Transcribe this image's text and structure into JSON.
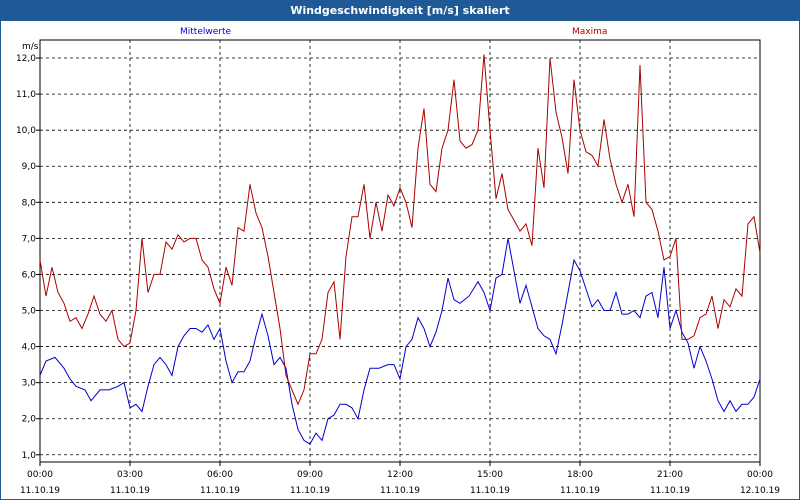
{
  "window": {
    "title": "Windgeschwindigkeit [m/s] skaliert"
  },
  "chart_data": {
    "type": "line",
    "ylabel": "m/s",
    "ylim": [
      0.8,
      12.5
    ],
    "yticks": [
      "1,0",
      "2,0",
      "3,0",
      "4,0",
      "5,0",
      "6,0",
      "7,0",
      "8,0",
      "9,0",
      "10,0",
      "11,0",
      "12,0"
    ],
    "xticks": [
      {
        "time": "00:00",
        "date": "11.10.19"
      },
      {
        "time": "03:00",
        "date": "11.10.19"
      },
      {
        "time": "06:00",
        "date": "11.10.19"
      },
      {
        "time": "09:00",
        "date": "11.10.19"
      },
      {
        "time": "12:00",
        "date": "11.10.19"
      },
      {
        "time": "15:00",
        "date": "11.10.19"
      },
      {
        "time": "18:00",
        "date": "11.10.19"
      },
      {
        "time": "21:00",
        "date": "11.10.19"
      },
      {
        "time": "00:00",
        "date": "12.10.19"
      }
    ],
    "x_unit": "hours",
    "x_range": [
      0,
      24
    ],
    "grid": true,
    "series": [
      {
        "name": "Mittelwerte",
        "color": "#0000cc",
        "points": [
          [
            0,
            3.2
          ],
          [
            0.2,
            3.6
          ],
          [
            0.5,
            3.7
          ],
          [
            0.8,
            3.4
          ],
          [
            1.0,
            3.1
          ],
          [
            1.2,
            2.9
          ],
          [
            1.5,
            2.8
          ],
          [
            1.7,
            2.5
          ],
          [
            2.0,
            2.8
          ],
          [
            2.3,
            2.8
          ],
          [
            2.6,
            2.9
          ],
          [
            2.8,
            3.0
          ],
          [
            3.0,
            2.3
          ],
          [
            3.2,
            2.4
          ],
          [
            3.4,
            2.2
          ],
          [
            3.6,
            2.9
          ],
          [
            3.8,
            3.5
          ],
          [
            4.0,
            3.7
          ],
          [
            4.2,
            3.5
          ],
          [
            4.4,
            3.2
          ],
          [
            4.6,
            4.0
          ],
          [
            4.8,
            4.3
          ],
          [
            5.0,
            4.5
          ],
          [
            5.2,
            4.5
          ],
          [
            5.4,
            4.4
          ],
          [
            5.6,
            4.6
          ],
          [
            5.8,
            4.2
          ],
          [
            6.0,
            4.5
          ],
          [
            6.2,
            3.6
          ],
          [
            6.4,
            3.0
          ],
          [
            6.6,
            3.3
          ],
          [
            6.8,
            3.3
          ],
          [
            7.0,
            3.6
          ],
          [
            7.2,
            4.3
          ],
          [
            7.4,
            4.9
          ],
          [
            7.6,
            4.3
          ],
          [
            7.8,
            3.5
          ],
          [
            8.0,
            3.7
          ],
          [
            8.2,
            3.4
          ],
          [
            8.4,
            2.4
          ],
          [
            8.6,
            1.7
          ],
          [
            8.8,
            1.4
          ],
          [
            9.0,
            1.3
          ],
          [
            9.2,
            1.6
          ],
          [
            9.4,
            1.4
          ],
          [
            9.6,
            2.0
          ],
          [
            9.8,
            2.1
          ],
          [
            10.0,
            2.4
          ],
          [
            10.2,
            2.4
          ],
          [
            10.4,
            2.3
          ],
          [
            10.6,
            2.0
          ],
          [
            10.8,
            2.8
          ],
          [
            11.0,
            3.4
          ],
          [
            11.3,
            3.4
          ],
          [
            11.6,
            3.5
          ],
          [
            11.8,
            3.5
          ],
          [
            12.0,
            3.1
          ],
          [
            12.2,
            4.0
          ],
          [
            12.4,
            4.2
          ],
          [
            12.6,
            4.8
          ],
          [
            12.8,
            4.5
          ],
          [
            13.0,
            4.0
          ],
          [
            13.2,
            4.4
          ],
          [
            13.4,
            5.0
          ],
          [
            13.6,
            5.9
          ],
          [
            13.8,
            5.3
          ],
          [
            14.0,
            5.2
          ],
          [
            14.3,
            5.4
          ],
          [
            14.6,
            5.8
          ],
          [
            14.8,
            5.5
          ],
          [
            15.0,
            5.0
          ],
          [
            15.2,
            5.9
          ],
          [
            15.4,
            6.0
          ],
          [
            15.6,
            7.0
          ],
          [
            15.8,
            6.1
          ],
          [
            16.0,
            5.2
          ],
          [
            16.2,
            5.7
          ],
          [
            16.4,
            5.1
          ],
          [
            16.6,
            4.5
          ],
          [
            16.8,
            4.3
          ],
          [
            17.0,
            4.2
          ],
          [
            17.2,
            3.8
          ],
          [
            17.4,
            4.6
          ],
          [
            17.6,
            5.5
          ],
          [
            17.8,
            6.4
          ],
          [
            18.0,
            6.1
          ],
          [
            18.2,
            5.6
          ],
          [
            18.4,
            5.1
          ],
          [
            18.6,
            5.3
          ],
          [
            18.8,
            5.0
          ],
          [
            19.0,
            5.0
          ],
          [
            19.2,
            5.5
          ],
          [
            19.4,
            4.9
          ],
          [
            19.6,
            4.9
          ],
          [
            19.8,
            5.0
          ],
          [
            20.0,
            4.8
          ],
          [
            20.2,
            5.4
          ],
          [
            20.4,
            5.5
          ],
          [
            20.6,
            4.8
          ],
          [
            20.8,
            6.2
          ],
          [
            21.0,
            4.5
          ],
          [
            21.2,
            5.0
          ],
          [
            21.4,
            4.4
          ],
          [
            21.6,
            4.1
          ],
          [
            21.8,
            3.4
          ],
          [
            22.0,
            4.0
          ],
          [
            22.2,
            3.6
          ],
          [
            22.4,
            3.1
          ],
          [
            22.6,
            2.5
          ],
          [
            22.8,
            2.2
          ],
          [
            23.0,
            2.5
          ],
          [
            23.2,
            2.2
          ],
          [
            23.4,
            2.4
          ],
          [
            23.6,
            2.4
          ],
          [
            23.8,
            2.6
          ],
          [
            24.0,
            3.1
          ]
        ]
      },
      {
        "name": "Maxima",
        "color": "#aa0000",
        "points": [
          [
            0,
            6.4
          ],
          [
            0.2,
            5.4
          ],
          [
            0.4,
            6.2
          ],
          [
            0.6,
            5.5
          ],
          [
            0.8,
            5.2
          ],
          [
            1.0,
            4.7
          ],
          [
            1.2,
            4.8
          ],
          [
            1.4,
            4.5
          ],
          [
            1.6,
            4.9
          ],
          [
            1.8,
            5.4
          ],
          [
            2.0,
            4.9
          ],
          [
            2.2,
            4.7
          ],
          [
            2.4,
            5.0
          ],
          [
            2.6,
            4.2
          ],
          [
            2.8,
            4.0
          ],
          [
            3.0,
            4.1
          ],
          [
            3.2,
            5.0
          ],
          [
            3.4,
            7.0
          ],
          [
            3.6,
            5.5
          ],
          [
            3.8,
            6.0
          ],
          [
            4.0,
            6.0
          ],
          [
            4.2,
            6.9
          ],
          [
            4.4,
            6.7
          ],
          [
            4.6,
            7.1
          ],
          [
            4.8,
            6.9
          ],
          [
            5.0,
            7.0
          ],
          [
            5.2,
            7.0
          ],
          [
            5.4,
            6.4
          ],
          [
            5.6,
            6.2
          ],
          [
            5.8,
            5.6
          ],
          [
            6.0,
            5.2
          ],
          [
            6.2,
            6.2
          ],
          [
            6.4,
            5.7
          ],
          [
            6.6,
            7.3
          ],
          [
            6.8,
            7.2
          ],
          [
            7.0,
            8.5
          ],
          [
            7.2,
            7.7
          ],
          [
            7.4,
            7.3
          ],
          [
            7.6,
            6.5
          ],
          [
            7.8,
            5.5
          ],
          [
            8.0,
            4.5
          ],
          [
            8.2,
            3.2
          ],
          [
            8.4,
            2.8
          ],
          [
            8.6,
            2.4
          ],
          [
            8.8,
            2.8
          ],
          [
            9.0,
            3.8
          ],
          [
            9.2,
            3.8
          ],
          [
            9.4,
            4.2
          ],
          [
            9.6,
            5.5
          ],
          [
            9.8,
            5.8
          ],
          [
            10.0,
            4.2
          ],
          [
            10.2,
            6.5
          ],
          [
            10.4,
            7.6
          ],
          [
            10.6,
            7.6
          ],
          [
            10.8,
            8.5
          ],
          [
            11.0,
            7.0
          ],
          [
            11.2,
            8.0
          ],
          [
            11.4,
            7.2
          ],
          [
            11.6,
            8.2
          ],
          [
            11.8,
            7.9
          ],
          [
            12.0,
            8.4
          ],
          [
            12.2,
            8.0
          ],
          [
            12.4,
            7.3
          ],
          [
            12.6,
            9.5
          ],
          [
            12.8,
            10.6
          ],
          [
            13.0,
            8.5
          ],
          [
            13.2,
            8.3
          ],
          [
            13.4,
            9.5
          ],
          [
            13.6,
            10.0
          ],
          [
            13.8,
            11.4
          ],
          [
            14.0,
            9.7
          ],
          [
            14.2,
            9.5
          ],
          [
            14.4,
            9.6
          ],
          [
            14.6,
            10.0
          ],
          [
            14.8,
            12.1
          ],
          [
            15.0,
            10.0
          ],
          [
            15.2,
            8.1
          ],
          [
            15.4,
            8.8
          ],
          [
            15.6,
            7.8
          ],
          [
            15.8,
            7.5
          ],
          [
            16.0,
            7.2
          ],
          [
            16.2,
            7.4
          ],
          [
            16.4,
            6.8
          ],
          [
            16.6,
            9.5
          ],
          [
            16.8,
            8.4
          ],
          [
            17.0,
            12.0
          ],
          [
            17.2,
            10.5
          ],
          [
            17.4,
            9.8
          ],
          [
            17.6,
            8.8
          ],
          [
            17.8,
            11.4
          ],
          [
            18.0,
            10.0
          ],
          [
            18.2,
            9.4
          ],
          [
            18.4,
            9.3
          ],
          [
            18.6,
            9.0
          ],
          [
            18.8,
            10.3
          ],
          [
            19.0,
            9.2
          ],
          [
            19.2,
            8.5
          ],
          [
            19.4,
            8.0
          ],
          [
            19.6,
            8.5
          ],
          [
            19.8,
            7.6
          ],
          [
            20.0,
            11.8
          ],
          [
            20.2,
            8.0
          ],
          [
            20.4,
            7.8
          ],
          [
            20.6,
            7.2
          ],
          [
            20.8,
            6.4
          ],
          [
            21.0,
            6.5
          ],
          [
            21.2,
            7.0
          ],
          [
            21.4,
            4.2
          ],
          [
            21.6,
            4.2
          ],
          [
            21.8,
            4.3
          ],
          [
            22.0,
            4.8
          ],
          [
            22.2,
            4.9
          ],
          [
            22.4,
            5.4
          ],
          [
            22.6,
            4.5
          ],
          [
            22.8,
            5.3
          ],
          [
            23.0,
            5.1
          ],
          [
            23.2,
            5.6
          ],
          [
            23.4,
            5.4
          ],
          [
            23.6,
            7.4
          ],
          [
            23.8,
            7.6
          ],
          [
            24.0,
            6.6
          ]
        ]
      }
    ]
  }
}
